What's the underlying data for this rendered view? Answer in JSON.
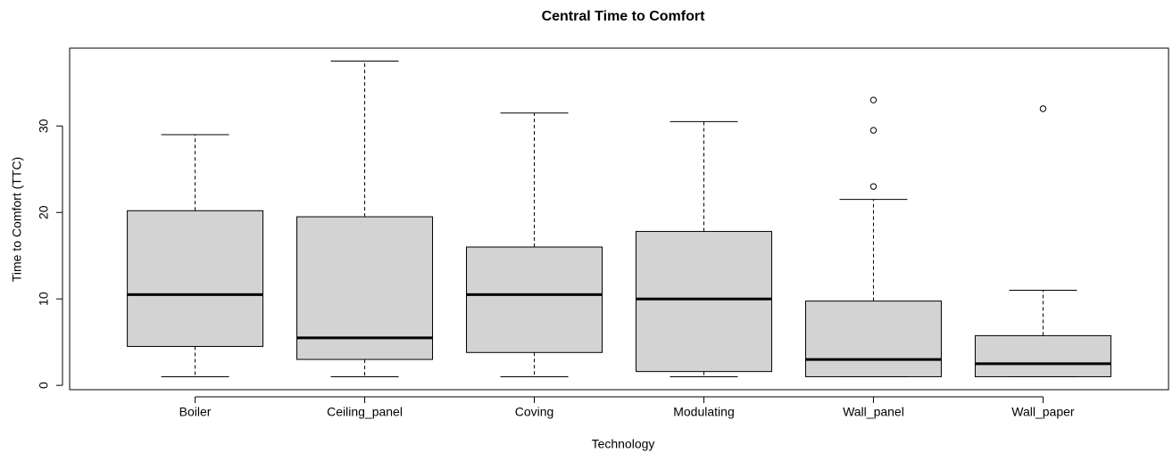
{
  "chart_data": {
    "type": "box",
    "title": "Central Time to Comfort",
    "x_label": "Technology",
    "y_label": "Time to Comfort (TTC)",
    "categories": [
      "Boiler",
      "Ceiling_panel",
      "Coving",
      "Modulating",
      "Wall_panel",
      "Wall_paper"
    ],
    "boxes": [
      {
        "min": 1,
        "q1": 4.5,
        "median": 10.5,
        "q3": 20.2,
        "max": 29,
        "outliers": []
      },
      {
        "min": 1,
        "q1": 3,
        "median": 5.5,
        "q3": 19.5,
        "max": 37.5,
        "outliers": []
      },
      {
        "min": 1,
        "q1": 3.8,
        "median": 10.5,
        "q3": 16,
        "max": 31.5,
        "outliers": []
      },
      {
        "min": 1,
        "q1": 1.6,
        "median": 10,
        "q3": 17.8,
        "max": 30.5,
        "outliers": []
      },
      {
        "min": 1,
        "q1": 1,
        "median": 3,
        "q3": 9.75,
        "max": 21.5,
        "outliers": [
          23,
          29.5,
          33
        ]
      },
      {
        "min": 1,
        "q1": 1,
        "median": 2.5,
        "q3": 5.75,
        "max": 11,
        "outliers": [
          32
        ]
      }
    ],
    "color": "#d3d3d3",
    "ylim": [
      -0.5,
      39
    ],
    "yticks": [
      0,
      10,
      20,
      30
    ]
  }
}
